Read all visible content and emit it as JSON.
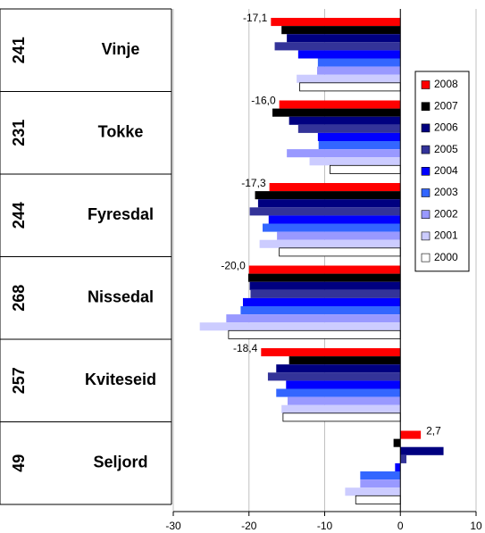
{
  "chart_data": {
    "type": "bar",
    "orientation": "horizontal",
    "categories": [
      "Vinje",
      "Tokke",
      "Fyresdal",
      "Nissedal",
      "Kviteseid",
      "Seljord"
    ],
    "category_codes": [
      "241",
      "231",
      "244",
      "268",
      "257",
      "49"
    ],
    "series": [
      {
        "name": "2008",
        "color": "#ff0000",
        "values": [
          -17.1,
          -16.0,
          -17.3,
          -20.0,
          -18.4,
          2.7
        ],
        "value_labels": [
          "-17,1",
          "-16,0",
          "-17,3",
          "-20,0",
          "-18,4",
          "2,7"
        ]
      },
      {
        "name": "2007",
        "color": "#000000",
        "values": [
          -15.7,
          -16.9,
          -19.2,
          -20.1,
          -14.7,
          -0.9
        ]
      },
      {
        "name": "2006",
        "color": "#000080",
        "values": [
          -15.0,
          -14.7,
          -18.8,
          -19.9,
          -16.4,
          5.7
        ]
      },
      {
        "name": "2005",
        "color": "#333399",
        "values": [
          -16.6,
          -13.5,
          -19.9,
          -19.8,
          -17.5,
          0.8
        ]
      },
      {
        "name": "2004",
        "color": "#0000ff",
        "values": [
          -13.5,
          -10.9,
          -17.4,
          -20.8,
          -15.1,
          -0.7
        ]
      },
      {
        "name": "2003",
        "color": "#3366ff",
        "values": [
          -10.9,
          -10.8,
          -18.2,
          -21.1,
          -16.4,
          -5.3
        ]
      },
      {
        "name": "2002",
        "color": "#9999ff",
        "values": [
          -11.0,
          -15.0,
          -16.3,
          -23.0,
          -14.9,
          -5.3
        ]
      },
      {
        "name": "2001",
        "color": "#ccccff",
        "values": [
          -13.7,
          -12.0,
          -18.6,
          -26.5,
          -15.7,
          -7.3
        ]
      },
      {
        "name": "2000",
        "color": "#ffffff",
        "values": [
          -13.3,
          -9.3,
          -16.0,
          -22.7,
          -15.5,
          -5.9
        ]
      }
    ],
    "xlim": [
      -30,
      10
    ],
    "xticks": [
      -30,
      -20,
      -10,
      0,
      10
    ],
    "grid": true,
    "legend": "right"
  }
}
